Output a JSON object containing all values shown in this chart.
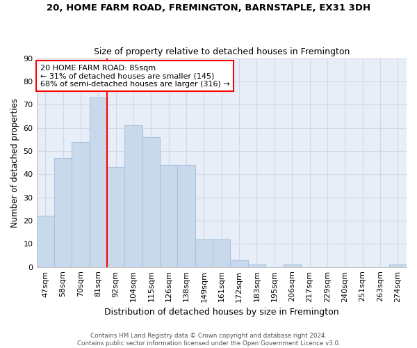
{
  "title1": "20, HOME FARM ROAD, FREMINGTON, BARNSTAPLE, EX31 3DH",
  "title2": "Size of property relative to detached houses in Fremington",
  "xlabel": "Distribution of detached houses by size in Fremington",
  "ylabel": "Number of detached properties",
  "bin_labels": [
    "47sqm",
    "58sqm",
    "70sqm",
    "81sqm",
    "92sqm",
    "104sqm",
    "115sqm",
    "126sqm",
    "138sqm",
    "149sqm",
    "161sqm",
    "172sqm",
    "183sqm",
    "195sqm",
    "206sqm",
    "217sqm",
    "229sqm",
    "240sqm",
    "251sqm",
    "263sqm",
    "274sqm"
  ],
  "bar_heights": [
    22,
    47,
    54,
    73,
    43,
    61,
    56,
    44,
    44,
    12,
    12,
    3,
    1,
    0,
    1,
    0,
    0,
    0,
    0,
    0,
    1
  ],
  "bar_color": "#c9d9ec",
  "bar_edge_color": "#a8c4de",
  "grid_color": "#d0d8e8",
  "plot_bg_color": "#e8eef8",
  "fig_bg_color": "#ffffff",
  "vline_x_index": 3.5,
  "vline_color": "red",
  "annotation_text": "20 HOME FARM ROAD: 85sqm\n← 31% of detached houses are smaller (145)\n68% of semi-detached houses are larger (316) →",
  "annotation_box_facecolor": "white",
  "annotation_box_edgecolor": "red",
  "ylim": [
    0,
    90
  ],
  "yticks": [
    0,
    10,
    20,
    30,
    40,
    50,
    60,
    70,
    80,
    90
  ],
  "footnote": "Contains HM Land Registry data © Crown copyright and database right 2024.\nContains public sector information licensed under the Open Government Licence v3.0."
}
